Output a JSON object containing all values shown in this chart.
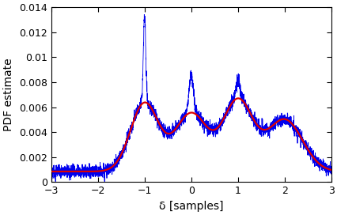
{
  "title": "",
  "xlabel": "δ [samples]",
  "ylabel": "PDF estimate",
  "xlim": [
    -3,
    3
  ],
  "ylim": [
    0,
    0.014
  ],
  "yticks": [
    0,
    0.002,
    0.004,
    0.006,
    0.008,
    0.01,
    0.012,
    0.014
  ],
  "ytick_labels": [
    "0",
    "0.002",
    "0.004",
    "0.006",
    "0.008",
    "0.01",
    "0.012",
    "0.014"
  ],
  "xticks": [
    -3,
    -2,
    -1,
    0,
    1,
    2,
    3
  ],
  "blue_color": "#0000ee",
  "red_color": "#dd0000",
  "background_color": "#ffffff",
  "base_level": 0.00085,
  "num_points": 4000,
  "seed": 17
}
